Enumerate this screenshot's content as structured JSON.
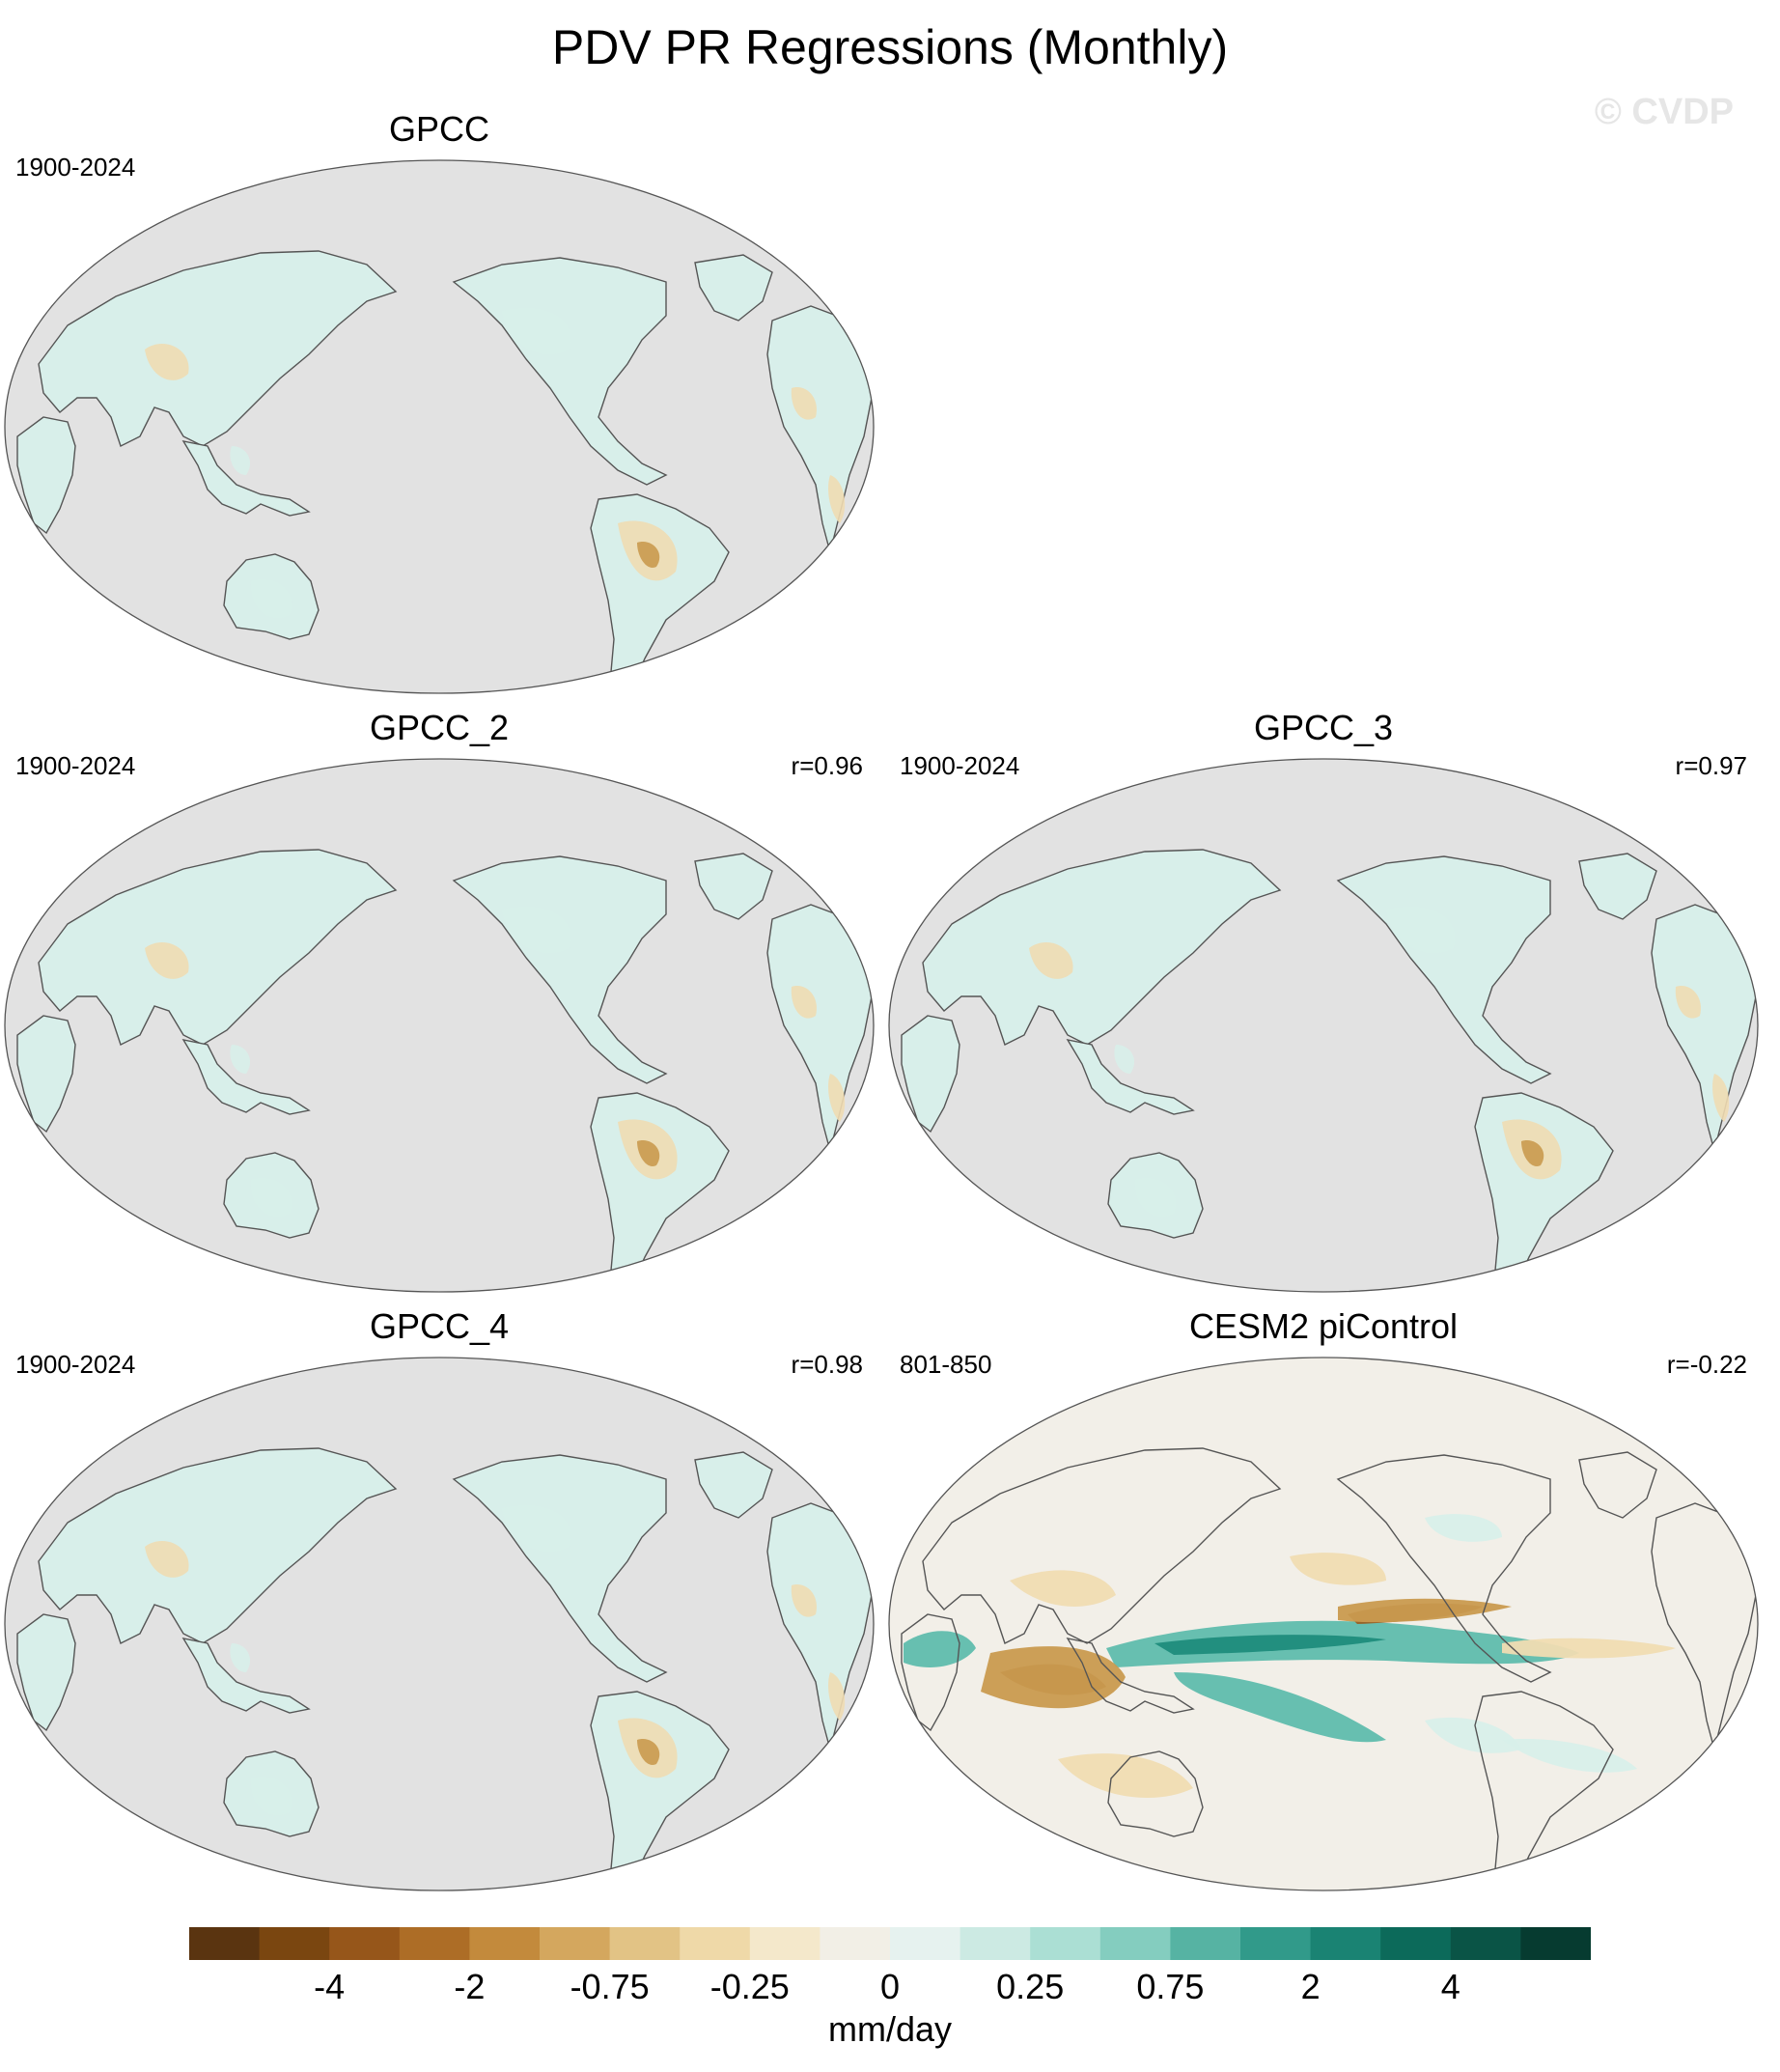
{
  "figure": {
    "title": "PDV PR Regressions (Monthly)",
    "watermark": "© CVDP"
  },
  "colors": {
    "ocean_gray": "#e2e2e2",
    "land_neutral": "#f2efe8",
    "light_teal": "#d8efea",
    "teal": "#5fbcad",
    "dark_teal": "#1f8c7c",
    "light_brown": "#f0dcb2",
    "brown": "#c99a4f",
    "dark_brown": "#9a5f22",
    "coast": "#555555"
  },
  "panels": [
    {
      "id": "gpcc",
      "title": "GPCC",
      "period": "1900-2024",
      "correlation": "",
      "style": "land-only"
    },
    {
      "id": "gpcc_2",
      "title": "GPCC_2",
      "period": "1900-2024",
      "correlation": "r=0.96",
      "style": "land-only"
    },
    {
      "id": "gpcc_3",
      "title": "GPCC_3",
      "period": "1900-2024",
      "correlation": "r=0.97",
      "style": "land-only"
    },
    {
      "id": "gpcc_4",
      "title": "GPCC_4",
      "period": "1900-2024",
      "correlation": "r=0.98",
      "style": "land-only"
    },
    {
      "id": "cesm2",
      "title": "CESM2 piControl",
      "period": "801-850",
      "correlation": "r=-0.22",
      "style": "full-field"
    }
  ],
  "colorbar": {
    "units": "mm/day",
    "tick_labels": [
      "-4",
      "-2",
      "-0.75",
      "-0.25",
      "0",
      "0.25",
      "0.75",
      "2",
      "4"
    ],
    "colors": [
      "#5a3410",
      "#7a4610",
      "#96561a",
      "#ad6d26",
      "#c38a3c",
      "#d4a75e",
      "#e2c385",
      "#efd9a8",
      "#f4e8cb",
      "#f2efe6",
      "#e6f2ef",
      "#cceae3",
      "#abdfd4",
      "#84cdbf",
      "#56b3a3",
      "#319a8a",
      "#1a8373",
      "#0c6a5a",
      "#0a5446",
      "#063b30"
    ]
  }
}
